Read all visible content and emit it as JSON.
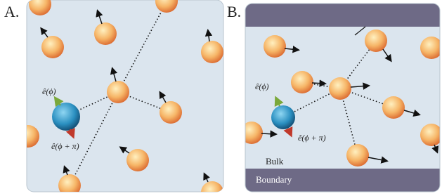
{
  "panels": [
    {
      "label": "A.",
      "up_vector": "ê(ϕ)",
      "down_vector": "ê(ϕ + π)"
    },
    {
      "label": "B.",
      "up_vector": "ê(ϕ)",
      "down_vector": "ê(ϕ + π)",
      "bulk": "Bulk",
      "boundary": "Boundary"
    }
  ]
}
